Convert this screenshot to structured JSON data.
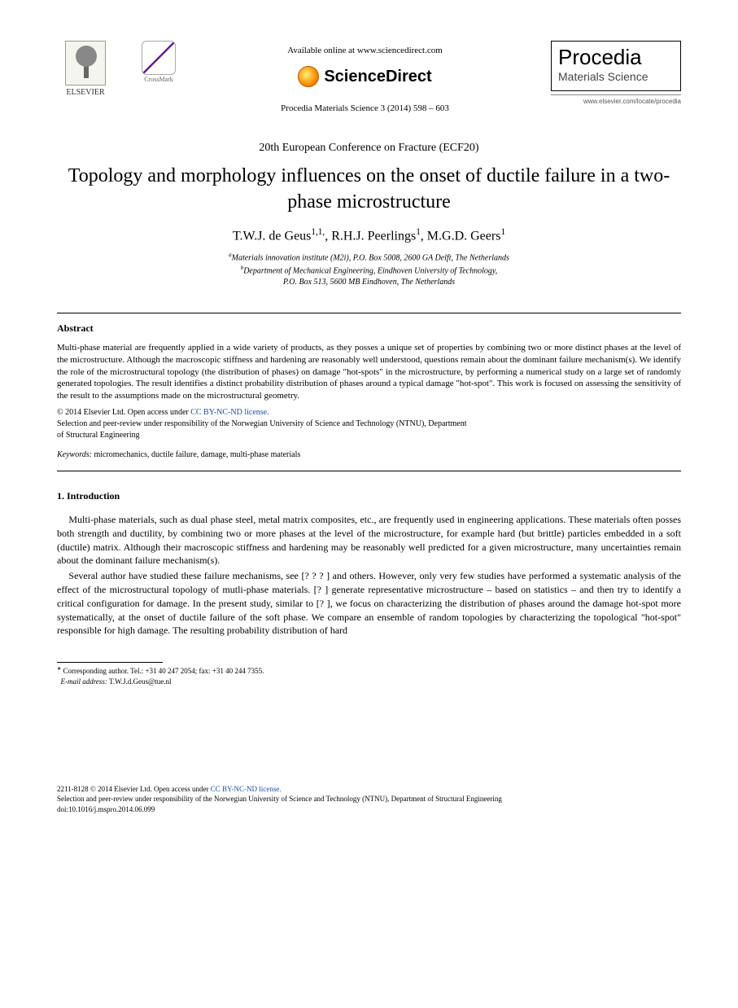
{
  "header": {
    "elsevier_label": "ELSEVIER",
    "crossmark_label": "CrossMark",
    "available_online": "Available online at www.sciencedirect.com",
    "sciencedirect": "ScienceDirect",
    "journal_ref": "Procedia Materials Science 3 (2014) 598 – 603",
    "procedia_main": "Procedia",
    "procedia_sub": "Materials Science",
    "procedia_url": "www.elsevier.com/locate/procedia"
  },
  "conference": "20th European Conference on Fracture (ECF20)",
  "title": "Topology and morphology influences on the onset of ductile failure in a two-phase microstructure",
  "authors": "T.W.J. de Geus",
  "author_sup1": "1,1,",
  "author2": ", R.H.J. Peerlings",
  "author_sup2": "1",
  "author3": ", M.G.D. Geers",
  "author_sup3": "1",
  "affiliations": {
    "a": "Materials innovation institute (M2i), P.O. Box 5008, 2600 GA Delft, The Netherlands",
    "b": "Department of Mechanical Engineering, Eindhoven University of Technology,",
    "b2": "P.O. Box 513, 5600 MB Eindhoven, The Netherlands"
  },
  "abstract_heading": "Abstract",
  "abstract_body": "Multi-phase material are frequently applied in a wide variety of products, as they posses a unique set of properties by combining two or more distinct phases at the level of the microstructure. Although the macroscopic stiffness and hardening are reasonably well understood, questions remain about the dominant failure mechanism(s). We identify the role of the microstructural topology (the distribution of phases) on damage \"hot-spots\" in the microstructure, by performing a numerical study on a large set of randomly generated topologies. The result identifies a distinct probability distribution of phases around a typical damage \"hot-spot\". This work is focused on assessing the sensitivity of the result to the assumptions made on the microstructural geometry.",
  "copyright": {
    "line1a": "© 2014 Elsevier Ltd. ",
    "line1b_prefix": "Open access under ",
    "license_text": "CC BY-NC-ND license.",
    "line2": "Selection and peer-review under responsibility of the Norwegian University of Science and Technology (NTNU), Department",
    "line3": "of Structural Engineering"
  },
  "keywords_label": "Keywords:",
  "keywords": "   micromechanics, ductile failure, damage, multi-phase materials",
  "intro_heading": "1. Introduction",
  "intro_p1": "Multi-phase materials, such as dual phase steel, metal matrix composites, etc., are frequently used in engineering applications. These materials often posses both strength and ductility, by combining two or more phases at the level of the microstructure, for example hard (but brittle) particles embedded in a soft (ductile) matrix. Although their macroscopic stiffness and hardening may be reasonably well predicted for a given microstructure, many uncertainties remain about the dominant failure mechanism(s).",
  "intro_p2": "Several author have studied these failure mechanisms, see [? ? ? ] and others. However, only very few studies have performed a systematic analysis of the effect of the microstructural topology of mutli-phase materials. [? ] generate representative microstructure – based on statistics – and then try to identify a critical configuration for damage. In the present study, similar to [? ], we focus on characterizing the distribution of phases around the damage hot-spot more systematically, at the onset of ductile failure of the soft phase. We compare an ensemble of random topologies by characterizing the topological \"hot-spot\" responsible for high damage. The resulting probability distribution of hard",
  "footnote": {
    "corr": "Corresponding author. Tel.: +31 40 247 2054; fax: +31 40 244 7355.",
    "email_label": "E-mail address:",
    "email": " T.W.J.d.Geus@tue.nl"
  },
  "footer": {
    "issn": "2211-8128 © 2014 Elsevier Ltd. ",
    "open_access": "Open access under ",
    "license_text": "CC BY-NC-ND license.",
    "peer": "Selection and peer-review under responsibility of the Norwegian University of Science and Technology (NTNU), Department of Structural Engineering",
    "doi": "doi:10.1016/j.mspro.2014.06.099"
  },
  "colors": {
    "text": "#000000",
    "background": "#ffffff",
    "link": "#1a4fa3",
    "elsevier_orange": "#e65100",
    "procedia_gray": "#444444"
  }
}
